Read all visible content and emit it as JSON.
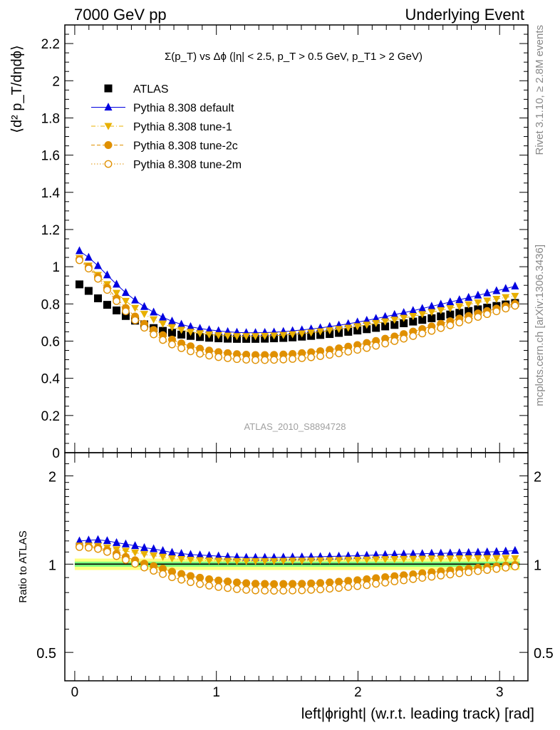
{
  "header": {
    "left": "7000 GeV pp",
    "right": "Underlying Event"
  },
  "side_labels": {
    "rivet": "Rivet 3.1.10, ≥ 2.8M events",
    "mcplots": "mcplots.cern.ch [arXiv:1306.3436]"
  },
  "chart_data": [
    {
      "type": "scatter",
      "title": "Σ(p_T) vs Δϕ (|η| < 2.5, p_T > 0.5 GeV, p_T1 > 2 GeV)",
      "ylabel": "⟨d² p_T/dηdϕ⟩",
      "xlabel": "",
      "watermark": "ATLAS_2010_S8894728",
      "xlim": [
        -0.07,
        3.2
      ],
      "ylim": [
        0,
        2.3
      ],
      "yticks": [
        "0",
        "0.2",
        "0.4",
        "0.6",
        "0.8",
        "1",
        "1.2",
        "1.4",
        "1.6",
        "1.8",
        "2",
        "2.2"
      ],
      "legend_position": "top-left",
      "x": [
        0.033,
        0.098,
        0.164,
        0.229,
        0.295,
        0.36,
        0.426,
        0.491,
        0.557,
        0.622,
        0.687,
        0.753,
        0.818,
        0.884,
        0.949,
        1.015,
        1.08,
        1.145,
        1.211,
        1.276,
        1.342,
        1.407,
        1.473,
        1.538,
        1.604,
        1.669,
        1.734,
        1.8,
        1.865,
        1.931,
        1.996,
        2.062,
        2.127,
        2.192,
        2.258,
        2.323,
        2.389,
        2.454,
        2.52,
        2.585,
        2.651,
        2.716,
        2.781,
        2.847,
        2.912,
        2.978,
        3.043,
        3.109
      ],
      "series": [
        {
          "name": "ATLAS",
          "color": "#000000",
          "marker": "square",
          "line": "none",
          "values": [
            0.905,
            0.87,
            0.83,
            0.795,
            0.765,
            0.735,
            0.71,
            0.69,
            0.67,
            0.655,
            0.645,
            0.635,
            0.628,
            0.622,
            0.618,
            0.615,
            0.613,
            0.612,
            0.612,
            0.612,
            0.613,
            0.615,
            0.617,
            0.62,
            0.624,
            0.628,
            0.633,
            0.638,
            0.644,
            0.65,
            0.657,
            0.664,
            0.671,
            0.679,
            0.687,
            0.696,
            0.705,
            0.714,
            0.723,
            0.733,
            0.743,
            0.752,
            0.762,
            0.771,
            0.78,
            0.789,
            0.797,
            0.805
          ]
        },
        {
          "name": "Pythia 8.308 default",
          "color": "#0000e0",
          "marker": "triangle-up",
          "line": "solid",
          "values": [
            1.085,
            1.05,
            1.005,
            0.955,
            0.905,
            0.86,
            0.82,
            0.785,
            0.755,
            0.728,
            0.707,
            0.69,
            0.677,
            0.668,
            0.661,
            0.655,
            0.65,
            0.647,
            0.645,
            0.645,
            0.646,
            0.648,
            0.651,
            0.655,
            0.66,
            0.665,
            0.671,
            0.678,
            0.685,
            0.693,
            0.702,
            0.711,
            0.721,
            0.731,
            0.742,
            0.753,
            0.764,
            0.775,
            0.787,
            0.798,
            0.81,
            0.822,
            0.834,
            0.846,
            0.858,
            0.87,
            0.882,
            0.895
          ]
        },
        {
          "name": "Pythia 8.308 tune-1",
          "color": "#e8b000",
          "marker": "triangle-down",
          "line": "dash-dot",
          "values": [
            1.045,
            1.005,
            0.955,
            0.905,
            0.858,
            0.815,
            0.777,
            0.745,
            0.716,
            0.693,
            0.674,
            0.66,
            0.649,
            0.641,
            0.635,
            0.631,
            0.628,
            0.626,
            0.626,
            0.626,
            0.627,
            0.629,
            0.632,
            0.636,
            0.64,
            0.645,
            0.651,
            0.657,
            0.664,
            0.671,
            0.679,
            0.687,
            0.696,
            0.705,
            0.714,
            0.724,
            0.734,
            0.744,
            0.755,
            0.765,
            0.776,
            0.786,
            0.797,
            0.807,
            0.817,
            0.826,
            0.835,
            0.842
          ]
        },
        {
          "name": "Pythia 8.308 tune-2c",
          "color": "#e09000",
          "marker": "circle",
          "line": "dashed",
          "values": [
            1.04,
            0.998,
            0.945,
            0.887,
            0.83,
            0.778,
            0.732,
            0.693,
            0.66,
            0.632,
            0.608,
            0.588,
            0.572,
            0.559,
            0.549,
            0.541,
            0.535,
            0.53,
            0.527,
            0.525,
            0.525,
            0.526,
            0.528,
            0.531,
            0.535,
            0.54,
            0.546,
            0.553,
            0.561,
            0.57,
            0.579,
            0.59,
            0.601,
            0.613,
            0.625,
            0.638,
            0.651,
            0.665,
            0.679,
            0.693,
            0.707,
            0.721,
            0.735,
            0.749,
            0.762,
            0.775,
            0.788,
            0.8
          ]
        },
        {
          "name": "Pythia 8.308 tune-2m",
          "color": "#e09000",
          "marker": "circle-open",
          "line": "dotted",
          "values": [
            1.035,
            0.99,
            0.935,
            0.875,
            0.815,
            0.76,
            0.712,
            0.672,
            0.636,
            0.606,
            0.582,
            0.562,
            0.545,
            0.532,
            0.522,
            0.514,
            0.508,
            0.503,
            0.5,
            0.498,
            0.498,
            0.499,
            0.501,
            0.504,
            0.508,
            0.513,
            0.519,
            0.526,
            0.534,
            0.543,
            0.553,
            0.563,
            0.575,
            0.587,
            0.6,
            0.613,
            0.627,
            0.641,
            0.655,
            0.67,
            0.685,
            0.7,
            0.715,
            0.73,
            0.745,
            0.76,
            0.775,
            0.79
          ]
        }
      ]
    },
    {
      "type": "scatter",
      "ylabel": "Ratio to ATLAS",
      "xlabel": "left|ϕright| (w.r.t. leading track) [rad]",
      "ylim": [
        0.4,
        2.4
      ],
      "log_y": true,
      "yticks": [
        "0.5",
        "1",
        "2"
      ],
      "xticks": [
        "0",
        "1",
        "2",
        "3"
      ],
      "reference_band": {
        "inner": [
          0.98,
          1.02
        ],
        "outer": [
          0.955,
          1.045
        ],
        "inner_color": "#7fff7f",
        "outer_color": "#ffff7f"
      },
      "series_ratio_to": "ATLAS"
    }
  ]
}
